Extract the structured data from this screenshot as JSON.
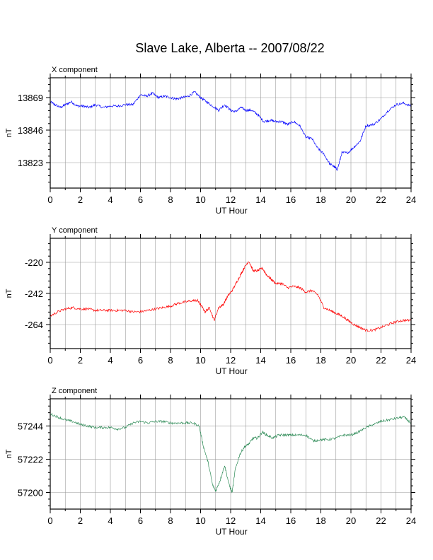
{
  "title": "Slave Lake, Alberta -- 2007/08/22",
  "chart_data": [
    {
      "type": "line",
      "panel_label": "X component",
      "xlabel": "UT Hour",
      "ylabel": "nT",
      "xlim": [
        0,
        24
      ],
      "ylim": [
        13805,
        13883
      ],
      "x_ticks": [
        0,
        2,
        4,
        6,
        8,
        10,
        12,
        14,
        16,
        18,
        20,
        22,
        24
      ],
      "y_ticks": [
        13823,
        13846,
        13869
      ],
      "grid": true,
      "color": "#0000ff",
      "x": [
        0,
        0.3,
        0.7,
        1.0,
        1.4,
        1.8,
        2.2,
        2.6,
        3.0,
        3.5,
        4.0,
        4.5,
        5.0,
        5.5,
        6.0,
        6.4,
        6.8,
        7.2,
        7.6,
        8.0,
        8.4,
        8.8,
        9.2,
        9.6,
        10.0,
        10.4,
        10.8,
        11.2,
        11.6,
        12.0,
        12.3,
        12.7,
        13.0,
        13.4,
        13.8,
        14.2,
        14.6,
        15.0,
        15.4,
        15.8,
        16.2,
        16.6,
        17.0,
        17.4,
        17.8,
        18.2,
        18.6,
        18.9,
        19.1,
        19.4,
        19.8,
        20.2,
        20.6,
        21.0,
        21.5,
        22.0,
        22.5,
        23.0,
        23.5,
        24.0
      ],
      "values": [
        13866,
        13864,
        13862,
        13864,
        13866,
        13863,
        13863,
        13862,
        13864,
        13862,
        13863,
        13863,
        13864,
        13864,
        13871,
        13870,
        13872,
        13869,
        13870,
        13869,
        13868,
        13869,
        13870,
        13873,
        13869,
        13866,
        13863,
        13860,
        13864,
        13860,
        13859,
        13862,
        13860,
        13860,
        13857,
        13852,
        13853,
        13852,
        13852,
        13850,
        13852,
        13849,
        13841,
        13840,
        13833,
        13829,
        13822,
        13820,
        13818,
        13830,
        13830,
        13834,
        13838,
        13849,
        13850,
        13854,
        13860,
        13864,
        13865,
        13863
      ]
    },
    {
      "type": "line",
      "panel_label": "Y component",
      "xlabel": "UT Hour",
      "ylabel": "nT",
      "xlim": [
        0,
        24
      ],
      "ylim": [
        -281,
        -203
      ],
      "x_ticks": [
        0,
        2,
        4,
        6,
        8,
        10,
        12,
        14,
        16,
        18,
        20,
        22,
        24
      ],
      "y_ticks": [
        -264,
        -242,
        -220
      ],
      "grid": true,
      "color": "#ff0000",
      "x": [
        0,
        0.5,
        1.0,
        1.5,
        2.0,
        2.5,
        3.0,
        3.5,
        4.0,
        4.5,
        5.0,
        5.5,
        6.0,
        6.5,
        7.0,
        7.5,
        8.0,
        8.5,
        9.0,
        9.5,
        9.8,
        10.0,
        10.3,
        10.6,
        10.9,
        11.2,
        11.5,
        11.8,
        12.1,
        12.4,
        12.7,
        12.9,
        13.2,
        13.5,
        13.8,
        14.1,
        14.4,
        14.7,
        15.0,
        15.4,
        15.8,
        16.2,
        16.6,
        17.0,
        17.4,
        17.8,
        18.2,
        18.6,
        19.0,
        19.4,
        19.8,
        20.2,
        20.6,
        21.0,
        21.5,
        22.0,
        22.5,
        23.0,
        23.5,
        24.0
      ],
      "values": [
        -258,
        -255,
        -253,
        -252,
        -253,
        -253,
        -254,
        -254,
        -254,
        -254,
        -254,
        -255,
        -255,
        -254,
        -253,
        -252,
        -251,
        -249,
        -248,
        -247,
        -247,
        -250,
        -255,
        -252,
        -261,
        -252,
        -250,
        -244,
        -240,
        -234,
        -228,
        -224,
        -219,
        -226,
        -226,
        -224,
        -229,
        -232,
        -235,
        -235,
        -238,
        -237,
        -238,
        -241,
        -240,
        -243,
        -252,
        -254,
        -256,
        -258,
        -261,
        -264,
        -266,
        -268,
        -268,
        -266,
        -264,
        -262,
        -261,
        -261
      ]
    },
    {
      "type": "line",
      "panel_label": "Z component",
      "xlabel": "UT Hour",
      "ylabel": "nT",
      "xlim": [
        0,
        24
      ],
      "ylim": [
        57189,
        57262
      ],
      "x_ticks": [
        0,
        2,
        4,
        6,
        8,
        10,
        12,
        14,
        16,
        18,
        20,
        22,
        24
      ],
      "y_ticks": [
        57200,
        57222,
        57244
      ],
      "grid": true,
      "color": "#2e8b57",
      "x": [
        0,
        0.5,
        1.0,
        1.5,
        2.0,
        2.5,
        3.0,
        3.5,
        4.0,
        4.5,
        5.0,
        5.5,
        6.0,
        6.5,
        7.0,
        7.5,
        8.0,
        8.5,
        9.0,
        9.5,
        9.9,
        10.2,
        10.5,
        10.8,
        11.0,
        11.3,
        11.6,
        11.9,
        12.1,
        12.3,
        12.6,
        12.9,
        13.2,
        13.5,
        13.8,
        14.1,
        14.4,
        14.8,
        15.2,
        15.6,
        16.0,
        16.5,
        17.0,
        17.5,
        18.0,
        18.5,
        19.0,
        19.5,
        20.0,
        20.5,
        21.0,
        21.5,
        22.0,
        22.5,
        23.0,
        23.5,
        24.0
      ],
      "values": [
        57252,
        57250,
        57248,
        57247,
        57245,
        57244,
        57243,
        57243,
        57243,
        57242,
        57243,
        57246,
        57247,
        57246,
        57247,
        57247,
        57246,
        57246,
        57246,
        57246,
        57244,
        57230,
        57220,
        57205,
        57201,
        57208,
        57218,
        57205,
        57200,
        57215,
        57225,
        57230,
        57232,
        57236,
        57236,
        57240,
        57238,
        57236,
        57238,
        57238,
        57238,
        57238,
        57238,
        57234,
        57235,
        57235,
        57236,
        57238,
        57238,
        57240,
        57243,
        57245,
        57247,
        57248,
        57249,
        57250,
        57246
      ]
    }
  ]
}
